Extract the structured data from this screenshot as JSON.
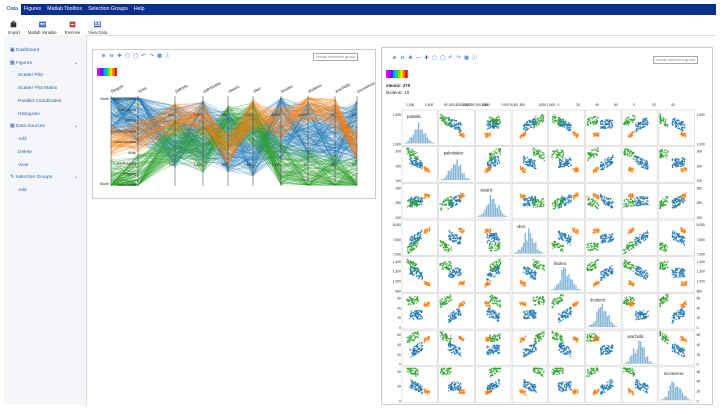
{
  "menu": {
    "items": [
      "Data",
      "Figures",
      "Matlab Toolbox",
      "Selection Groups",
      "Help"
    ],
    "active": "Data"
  },
  "toolbar": {
    "buttons": [
      {
        "label": "Import",
        "icon": "import-icon"
      },
      {
        "label": "Matlab Variable",
        "icon": "matlab-variable-icon"
      },
      {
        "label": "Remove",
        "icon": "remove-icon"
      },
      {
        "label": "View Data",
        "icon": "view-data-icon"
      }
    ]
  },
  "sidebar": {
    "dashboard": "Dashboard",
    "figures": "Figures",
    "figure_items": [
      "Scatter Plot",
      "Scatter Plot Matrix",
      "Parallel Coordinates",
      "Histogram"
    ],
    "data_sources": "Data Sources",
    "data_items": [
      "Add",
      "Delete",
      "View"
    ],
    "selection_groups": "Selection Groups",
    "selection_items": [
      "Add"
    ]
  },
  "parallel_panel": {
    "selection_placeholder": "create selection group",
    "axes": [
      "Region",
      "Area",
      "palmitic",
      "palmitoleic",
      "stearic",
      "oleic",
      "linoleic",
      "linolenic",
      "arachidic",
      "eicosenoic"
    ],
    "region_ticks": [
      "North",
      "South"
    ],
    "area_ticks": [
      "Inland Sardinia",
      "East Liguria",
      "Umbria",
      "Coastal Sardinia",
      "Inland Sardinia",
      "Sicily",
      "South Apulia",
      "Calabria",
      "South Apulia"
    ],
    "small_ticks": [
      "600",
      "750",
      "1,000",
      "1,250",
      "350",
      "500",
      "1,000",
      "7,500",
      "5,000",
      "7,500",
      "1,000",
      "30",
      "20",
      "10",
      "60",
      "50",
      "30",
      "20"
    ]
  },
  "splom_panel": {
    "selection_placeholder": "create selection group",
    "tab_label": "...",
    "info": {
      "line1": "stearic: 270",
      "line2": "linolenic: 10"
    },
    "vars": [
      "palmitic",
      "palmitoleic",
      "stearic",
      "oleic",
      "linoleic",
      "linolenic",
      "arachidic",
      "eicosenoic"
    ],
    "top_ticks": [
      "1,000",
      "1,500",
      "50 100150200250",
      "200 250 300 350",
      "6,500",
      "7,000 8,000",
      "500",
      "1000 1,500",
      "0",
      "20",
      "40",
      "60",
      "0",
      "20",
      "40"
    ],
    "left_ticks": [
      [
        "1,500",
        "1,000"
      ],
      [
        "300",
        "200",
        "100"
      ],
      [
        "300",
        "250",
        "200"
      ],
      [
        "8,000",
        "7,500",
        "7,000"
      ],
      [
        "1,400",
        "1,200",
        "1,000",
        "800"
      ],
      [
        "60",
        "40",
        "20",
        "0"
      ],
      [
        "60",
        "40",
        "20",
        "0"
      ],
      [
        "40",
        "20",
        "0"
      ]
    ],
    "right_ticks": [
      [
        "1,500",
        "1,000"
      ],
      [
        "300",
        "200",
        "100"
      ],
      [
        "300",
        "250",
        "200"
      ],
      [
        "8,000",
        "7,500",
        "7,000"
      ],
      [
        "1,400",
        "1,200",
        "1,000",
        "800"
      ],
      [
        "60",
        "40",
        "20",
        "0"
      ],
      [
        "60",
        "40",
        "20",
        "0"
      ],
      [
        "60",
        "40",
        "20",
        "0"
      ]
    ]
  },
  "colors": {
    "blue": "#1f77b4",
    "orange": "#ff7f0e",
    "green": "#2ca02c",
    "menubar": "#0b2f8f",
    "link": "#2b5fb0"
  }
}
